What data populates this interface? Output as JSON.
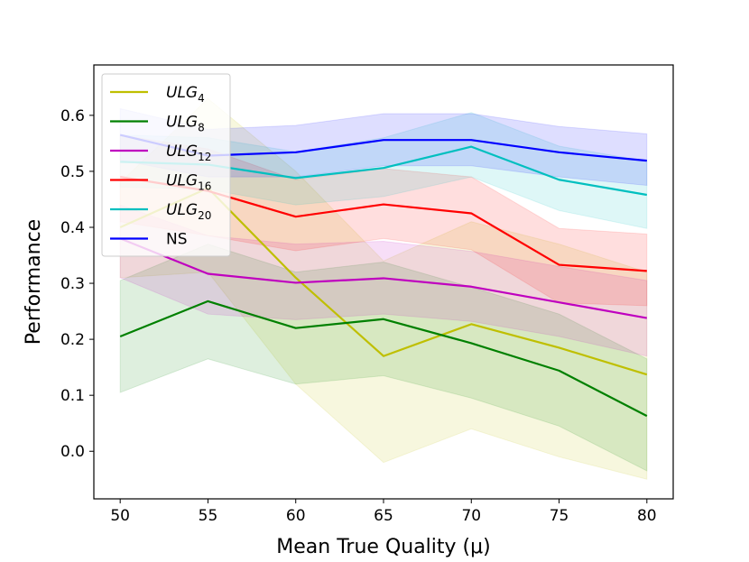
{
  "chart_data": {
    "type": "line",
    "title": "",
    "xlabel": "Mean True Quality (μ)",
    "ylabel": "Performance",
    "xlim": [
      48.5,
      81.5
    ],
    "ylim": [
      -0.085,
      0.69
    ],
    "x": [
      50,
      55,
      60,
      65,
      70,
      75,
      80
    ],
    "xticks": [
      "50",
      "55",
      "60",
      "65",
      "70",
      "75",
      "80"
    ],
    "yticks": [
      0.0,
      0.1,
      0.2,
      0.3,
      0.4,
      0.5,
      0.6
    ],
    "ytick_labels": [
      "0.0",
      "0.1",
      "0.2",
      "0.3",
      "0.4",
      "0.5",
      "0.6"
    ],
    "legend_position": "upper-left",
    "series": [
      {
        "name": "ULG",
        "subscript": "4",
        "color": "#bfbf00",
        "values": [
          0.4,
          0.47,
          0.31,
          0.17,
          0.227,
          0.185,
          0.137
        ],
        "lower": [
          0.31,
          0.32,
          0.12,
          -0.02,
          0.04,
          -0.01,
          -0.05
        ],
        "upper": [
          0.48,
          0.63,
          0.5,
          0.34,
          0.41,
          0.37,
          0.32
        ]
      },
      {
        "name": "ULG",
        "subscript": "8",
        "color": "#008000",
        "values": [
          0.205,
          0.268,
          0.22,
          0.236,
          0.193,
          0.144,
          0.063
        ],
        "lower": [
          0.105,
          0.165,
          0.12,
          0.135,
          0.095,
          0.045,
          -0.035
        ],
        "upper": [
          0.305,
          0.37,
          0.32,
          0.338,
          0.293,
          0.245,
          0.165
        ]
      },
      {
        "name": "ULG",
        "subscript": "12",
        "color": "#bf00bf",
        "values": [
          0.38,
          0.317,
          0.301,
          0.309,
          0.294,
          0.266,
          0.238
        ],
        "lower": [
          0.31,
          0.245,
          0.235,
          0.245,
          0.232,
          0.205,
          0.17
        ],
        "upper": [
          0.44,
          0.385,
          0.37,
          0.375,
          0.357,
          0.33,
          0.305
        ]
      },
      {
        "name": "ULG",
        "subscript": "16",
        "color": "#ff0000",
        "values": [
          0.49,
          0.465,
          0.419,
          0.441,
          0.425,
          0.333,
          0.322
        ],
        "lower": [
          0.41,
          0.385,
          0.358,
          0.38,
          0.36,
          0.265,
          0.26
        ],
        "upper": [
          0.565,
          0.54,
          0.485,
          0.505,
          0.49,
          0.398,
          0.388
        ]
      },
      {
        "name": "ULG",
        "subscript": "20",
        "color": "#00bfbf",
        "values": [
          0.517,
          0.512,
          0.488,
          0.506,
          0.544,
          0.485,
          0.458
        ],
        "lower": [
          0.472,
          0.468,
          0.44,
          0.455,
          0.49,
          0.43,
          0.398
        ],
        "upper": [
          0.565,
          0.56,
          0.535,
          0.56,
          0.605,
          0.545,
          0.518
        ]
      },
      {
        "name": "NS",
        "subscript": "",
        "color": "#0000ff",
        "values": [
          0.565,
          0.528,
          0.534,
          0.556,
          0.556,
          0.534,
          0.519
        ],
        "lower": [
          0.52,
          0.49,
          0.49,
          0.51,
          0.51,
          0.49,
          0.475
        ],
        "upper": [
          0.612,
          0.575,
          0.582,
          0.603,
          0.603,
          0.58,
          0.567
        ]
      }
    ]
  }
}
